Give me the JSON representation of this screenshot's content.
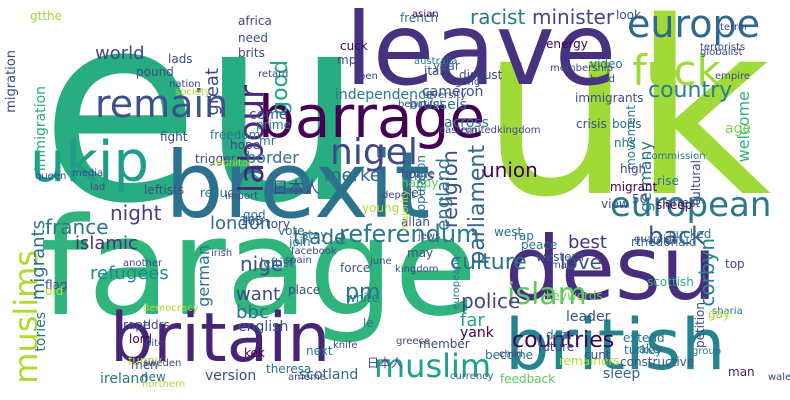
{
  "palette": {
    "purple": "#440154",
    "indigo": "#3b528b",
    "blue": "#31688e",
    "teal": "#21918c",
    "green": "#35b779",
    "lime": "#a0da39",
    "yellow": "#fde725"
  },
  "words": [
    {
      "id": "eu",
      "text": "eu",
      "color": "#27ad81"
    },
    {
      "id": "uk",
      "text": "uk",
      "color": "#a0da39"
    },
    {
      "id": "farage",
      "text": "farage",
      "color": "#2fb47c"
    },
    {
      "id": "leave",
      "text": "leave",
      "color": "#46327e"
    },
    {
      "id": "brexit",
      "text": "brexit",
      "color": "#2c728e"
    },
    {
      "id": "desu",
      "text": "desu",
      "color": "#472d7b"
    },
    {
      "id": "britain",
      "text": "britain",
      "color": "#482475"
    },
    {
      "id": "british",
      "text": "british",
      "color": "#25858e"
    },
    {
      "id": "barrage",
      "text": "barrage",
      "color": "#440154"
    },
    {
      "id": "ukip",
      "text": "ukip",
      "color": "#1f9e89"
    },
    {
      "id": "fuck",
      "text": "fuck",
      "color": "#a0da39"
    },
    {
      "id": "europe",
      "text": "europe",
      "color": "#31688e"
    },
    {
      "id": "european",
      "text": "european",
      "color": "#2a788e"
    },
    {
      "id": "remain",
      "text": "remain",
      "color": "#3b528b"
    },
    {
      "id": "nigel",
      "text": "nigel",
      "color": "#3e4989"
    },
    {
      "id": "labour",
      "text": "labour",
      "color": "#482878"
    },
    {
      "id": "muslims",
      "text": "muslims",
      "color": "#addc30"
    },
    {
      "id": "muslim",
      "text": "muslim",
      "color": "#1fa188"
    },
    {
      "id": "islam",
      "text": "islam",
      "color": "#5ec962"
    },
    {
      "id": "referendum",
      "text": "referendum",
      "color": "#2a788e"
    },
    {
      "id": "culture",
      "text": "culture",
      "color": "#2c728e"
    },
    {
      "id": "countries",
      "text": "countries",
      "color": "#440154"
    },
    {
      "id": "parliament",
      "text": "parliament",
      "color": "#31688e"
    },
    {
      "id": "religion",
      "text": "religion",
      "color": "#3b528b"
    },
    {
      "id": "country",
      "text": "country",
      "color": "#277f8e"
    },
    {
      "id": "minister",
      "text": "minister",
      "color": "#404688"
    },
    {
      "id": "racist",
      "text": "racist",
      "color": "#2a788e"
    },
    {
      "id": "good",
      "text": "good",
      "color": "#22a884"
    },
    {
      "id": "great",
      "text": "great",
      "color": "#3e4989"
    },
    {
      "id": "world",
      "text": "world",
      "color": "#3e4989"
    },
    {
      "id": "union",
      "text": "union",
      "color": "#440154"
    },
    {
      "id": "merkel",
      "text": "merkel",
      "color": "#31688e"
    },
    {
      "id": "border",
      "text": "border",
      "color": "#2c728e"
    },
    {
      "id": "france",
      "text": "france",
      "color": "#2a788e"
    },
    {
      "id": "night",
      "text": "night",
      "color": "#433e85"
    },
    {
      "id": "london",
      "text": "london",
      "color": "#2c728e"
    },
    {
      "id": "trade",
      "text": "trade",
      "color": "#31688e"
    },
    {
      "id": "islamic",
      "text": "islamic",
      "color": "#46327e"
    },
    {
      "id": "refugees",
      "text": "refugees",
      "color": "#23898e"
    },
    {
      "id": "nige",
      "text": "nige",
      "color": "#3b528b"
    },
    {
      "id": "want",
      "text": "want",
      "color": "#3e4989"
    },
    {
      "id": "bbc",
      "text": "bbc",
      "color": "#2c728e"
    },
    {
      "id": "pm",
      "text": "pm",
      "color": "#2c728e"
    },
    {
      "id": "police",
      "text": "police",
      "color": "#404688"
    },
    {
      "id": "far",
      "text": "far",
      "color": "#22a884"
    },
    {
      "id": "england",
      "text": "england",
      "color": "#2a788e"
    },
    {
      "id": "germany",
      "text": "germany",
      "color": "#2a788e"
    },
    {
      "id": "welcome",
      "text": "welcome",
      "color": "#2fb47c"
    },
    {
      "id": "back",
      "text": "back",
      "color": "#3b528b"
    },
    {
      "id": "best",
      "text": "best",
      "color": "#46327e"
    },
    {
      "id": "love",
      "text": "love",
      "color": "#3b528b"
    },
    {
      "id": "corbyn",
      "text": "corbyn",
      "color": "#25858e"
    },
    {
      "id": "migrants",
      "text": "migrants",
      "color": "#2c728e"
    },
    {
      "id": "german",
      "text": "german",
      "color": "#2c728e"
    },
    {
      "id": "tories",
      "text": "tories",
      "color": "#2c728e"
    },
    {
      "id": "immigration",
      "text": "immigration",
      "color": "#27ad81"
    },
    {
      "id": "migration",
      "text": "migration",
      "color": "#3e4989"
    },
    {
      "id": "scotland",
      "text": "scotland",
      "color": "#31688e"
    },
    {
      "id": "english",
      "text": "english",
      "color": "#3b528b"
    },
    {
      "id": "version",
      "text": "version",
      "color": "#3e4989"
    },
    {
      "id": "ireland",
      "text": "ireland",
      "color": "#2a788e"
    },
    {
      "id": "leftist",
      "text": "leftist",
      "color": "#2c728e"
    },
    {
      "id": "leader",
      "text": "leader",
      "color": "#3b528b"
    },
    {
      "id": "western",
      "text": "western",
      "color": "#3b528b"
    },
    {
      "id": "sleep",
      "text": "sleep",
      "color": "#31688e"
    },
    {
      "id": "yank",
      "text": "yank",
      "color": "#440154"
    },
    {
      "id": "keywords",
      "text": "keywords",
      "color": "#6ece58"
    },
    {
      "id": "remainers",
      "text": "remainers",
      "color": "#addc30"
    },
    {
      "id": "feedback",
      "text": "feedback",
      "color": "#5ec962"
    },
    {
      "id": "constructive",
      "text": "constructive",
      "color": "#38598c"
    },
    {
      "id": "man",
      "text": "man",
      "color": "#481f70"
    },
    {
      "id": "become",
      "text": "become",
      "color": "#2c728e"
    },
    {
      "id": "currency",
      "text": "currency",
      "color": "#31688e"
    },
    {
      "id": "scottish",
      "text": "scottish",
      "color": "#27ad81"
    },
    {
      "id": "member",
      "text": "member",
      "color": "#3e4989"
    },
    {
      "id": "nhs",
      "text": "nhs",
      "color": "#2c728e"
    },
    {
      "id": "boris",
      "text": "boris",
      "color": "#31688e"
    },
    {
      "id": "movement",
      "text": "movement",
      "color": "#2a788e"
    },
    {
      "id": "age",
      "text": "age",
      "color": "#7ad151"
    },
    {
      "id": "energy",
      "text": "energy",
      "color": "#440154"
    },
    {
      "id": "video",
      "text": "video",
      "color": "#2c728e"
    },
    {
      "id": "immigrants",
      "text": "immigrants",
      "color": "#3e4989"
    },
    {
      "id": "brussels",
      "text": "brussels",
      "color": "#2c728e"
    },
    {
      "id": "independence",
      "text": "independence",
      "color": "#2a788e"
    },
    {
      "id": "cameron",
      "text": "cameron",
      "color": "#3b528b"
    },
    {
      "id": "across",
      "text": "across",
      "color": "#2c728e"
    },
    {
      "id": "cuck",
      "text": "cuck",
      "color": "#440154"
    },
    {
      "id": "mp",
      "text": "mp",
      "color": "#3e4989"
    },
    {
      "id": "year",
      "text": "year",
      "color": "#2c728e"
    },
    {
      "id": "french",
      "text": "french",
      "color": "#2c728e"
    },
    {
      "id": "look",
      "text": "look",
      "color": "#3b528b"
    },
    {
      "id": "africa",
      "text": "africa",
      "color": "#404688"
    },
    {
      "id": "need",
      "text": "need",
      "color": "#3b528b"
    },
    {
      "id": "brits",
      "text": "brits",
      "color": "#404688"
    },
    {
      "id": "lads",
      "text": "lads",
      "color": "#3e4989"
    },
    {
      "id": "gtthe",
      "text": "gtthe",
      "color": "#a0da39"
    },
    {
      "id": "come",
      "text": "come",
      "color": "#3b528b"
    },
    {
      "id": "mps",
      "text": "mps",
      "color": "#2c728e"
    },
    {
      "id": "prime",
      "text": "prime",
      "color": "#2a788e"
    },
    {
      "id": "mr",
      "text": "mr",
      "color": "#31688e"
    },
    {
      "id": "hope",
      "text": "hope",
      "color": "#3e4989"
    },
    {
      "id": "fight",
      "text": "fight",
      "color": "#3e4989"
    },
    {
      "id": "freedom",
      "text": "freedom",
      "color": "#2a788e"
    },
    {
      "id": "trigger",
      "text": "trigger",
      "color": "#3e4989"
    },
    {
      "id": "reduce",
      "text": "reduce",
      "color": "#2a788e"
    },
    {
      "id": "leftists",
      "text": "leftists",
      "color": "#3e4989"
    },
    {
      "id": "young",
      "text": "young",
      "color": "#addc30"
    },
    {
      "id": "let",
      "text": "let",
      "color": "#31688e"
    },
    {
      "id": "home",
      "text": "home",
      "color": "#3e4989"
    },
    {
      "id": "happy",
      "text": "happy",
      "color": "#5ec962"
    },
    {
      "id": "may",
      "text": "may",
      "color": "#3b528b"
    },
    {
      "id": "god",
      "text": "god",
      "color": "#2c728e"
    },
    {
      "id": "tory",
      "text": "tory",
      "color": "#3e4989"
    },
    {
      "id": "vote",
      "text": "vote",
      "color": "#2c728e"
    },
    {
      "id": "join",
      "text": "join",
      "color": "#2a788e"
    },
    {
      "id": "stay",
      "text": "stay",
      "color": "#2c728e"
    },
    {
      "id": "allah",
      "text": "allah",
      "color": "#3e4989"
    },
    {
      "id": "view",
      "text": "view",
      "color": "#3b528b"
    },
    {
      "id": "rise",
      "text": "rise",
      "color": "#2c728e"
    },
    {
      "id": "arrest",
      "text": "arrest",
      "color": "#3b528b"
    },
    {
      "id": "crisis",
      "text": "crisis",
      "color": "#3e4989"
    },
    {
      "id": "commission",
      "text": "commission",
      "color": "#2a788e"
    },
    {
      "id": "cultural",
      "text": "cultural",
      "color": "#3e4989"
    },
    {
      "id": "population",
      "text": "population",
      "color": "#2a788e"
    },
    {
      "id": "high",
      "text": "high",
      "color": "#3e4989"
    },
    {
      "id": "migrant",
      "text": "migrant",
      "color": "#440154"
    },
    {
      "id": "deport",
      "text": "deport",
      "color": "#3e4989"
    },
    {
      "id": "peace",
      "text": "peace",
      "color": "#2c728e"
    },
    {
      "id": "place",
      "text": "place",
      "color": "#3e4989"
    },
    {
      "id": "force",
      "text": "force",
      "color": "#3b528b"
    },
    {
      "id": "white",
      "text": "white",
      "color": "#2a788e"
    },
    {
      "id": "flag",
      "text": "flag",
      "color": "#3e4989"
    },
    {
      "id": "old",
      "text": "old",
      "color": "#addc30"
    },
    {
      "id": "funny",
      "text": "funny",
      "color": "#addc30"
    },
    {
      "id": "men",
      "text": "men",
      "color": "#3e4989"
    },
    {
      "id": "new",
      "text": "new",
      "color": "#2c728e"
    },
    {
      "id": "lord",
      "text": "lord",
      "color": "#440154"
    },
    {
      "id": "tldrs",
      "text": "tldrs",
      "color": "#3e4989"
    },
    {
      "id": "rape",
      "text": "rape",
      "color": "#3e4989"
    },
    {
      "id": "kek",
      "text": "kek",
      "color": "#440154"
    },
    {
      "id": "next",
      "text": "next",
      "color": "#2a788e"
    },
    {
      "id": "future",
      "text": "future",
      "color": "#3e4989"
    },
    {
      "id": "extend",
      "text": "extend",
      "color": "#2c728e"
    },
    {
      "id": "turkey",
      "text": "turkey",
      "color": "#2c728e"
    },
    {
      "id": "petition",
      "text": "petition",
      "color": "#3e4989"
    },
    {
      "id": "australia",
      "text": "australia",
      "color": "#2a788e"
    },
    {
      "id": "italy",
      "text": "italy",
      "color": "#3e4989"
    },
    {
      "id": "disgust",
      "text": "disgust",
      "color": "#3e4989"
    },
    {
      "id": "asian",
      "text": "asian",
      "color": "#440154"
    },
    {
      "id": "terrorists",
      "text": "terrorists",
      "color": "#3e4989"
    },
    {
      "id": "globalist",
      "text": "globalist",
      "color": "#3e4989"
    },
    {
      "id": "sharia",
      "text": "sharia",
      "color": "#2a788e"
    },
    {
      "id": "rthedonald",
      "text": "rthedonald",
      "color": "#2c728e"
    },
    {
      "id": "cucked",
      "text": "cucked",
      "color": "#2a788e"
    },
    {
      "id": "sheep",
      "text": "sheep",
      "color": "#440154"
    },
    {
      "id": "le",
      "text": "le",
      "color": "#2a788e"
    },
    {
      "id": "west",
      "text": "west",
      "color": "#2c728e"
    },
    {
      "id": "rap",
      "text": "rap",
      "color": "#2c728e"
    },
    {
      "id": "deal",
      "text": "deal",
      "color": "#2c728e"
    },
    {
      "id": "cunt",
      "text": "cunt",
      "color": "#3e4989"
    },
    {
      "id": "take",
      "text": "take",
      "color": "#2c728e"
    },
    {
      "id": "group",
      "text": "group",
      "color": "#2a788e"
    },
    {
      "id": "gay",
      "text": "gay",
      "color": "#addc30"
    },
    {
      "id": "top",
      "text": "top",
      "color": "#3e4989"
    },
    {
      "id": "fifty",
      "text": "50",
      "color": "#3e4989"
    },
    {
      "id": "onesixtyfive",
      "text": "165",
      "color": "#3e4989"
    },
    {
      "id": "cjk1",
      "text": "日本人",
      "color": "#3e4989"
    },
    {
      "id": "cjk2",
      "text": "日本人",
      "color": "#3e4989"
    },
    {
      "id": "pound",
      "text": "pound",
      "color": "#3e4989"
    },
    {
      "id": "queen",
      "text": "queen",
      "color": "#3e4989"
    },
    {
      "id": "nation",
      "text": "nation",
      "color": "#3e4989"
    },
    {
      "id": "society",
      "text": "society",
      "color": "#addc30"
    },
    {
      "id": "retard",
      "text": "retard",
      "color": "#3e4989"
    },
    {
      "id": "monitor",
      "text": "monitor",
      "color": "#addc30"
    },
    {
      "id": "import",
      "text": "import",
      "color": "#3e4989"
    },
    {
      "id": "facebook",
      "text": "facebook",
      "color": "#3e4989"
    },
    {
      "id": "spain",
      "text": "spain",
      "color": "#3e4989"
    },
    {
      "id": "irish",
      "text": "irish",
      "color": "#3e4989"
    },
    {
      "id": "another",
      "text": "another",
      "color": "#3e4989"
    },
    {
      "id": "democracy",
      "text": "democracy",
      "color": "#addc30"
    },
    {
      "id": "sweden",
      "text": "sweden",
      "color": "#3e4989"
    },
    {
      "id": "theresa",
      "text": "theresa",
      "color": "#2c728e"
    },
    {
      "id": "northern",
      "text": "northern",
      "color": "#addc30"
    },
    {
      "id": "bite",
      "text": "bite",
      "color": "#3e4989"
    },
    {
      "id": "ameme",
      "text": "ameme",
      "color": "#3e4989"
    },
    {
      "id": "knife",
      "text": "knife",
      "color": "#3e4989"
    },
    {
      "id": "greece",
      "text": "greece",
      "color": "#3e4989"
    },
    {
      "id": "kingdom",
      "text": "kingdom",
      "color": "#3e4989"
    },
    {
      "id": "child",
      "text": "child",
      "color": "#3e4989"
    },
    {
      "id": "europeans",
      "text": "europeans",
      "color": "#2a788e"
    },
    {
      "id": "june",
      "text": "june",
      "color": "#3e4989"
    },
    {
      "id": "main",
      "text": "main",
      "color": "#3e4989"
    },
    {
      "id": "wales",
      "text": "wales",
      "color": "#3e4989"
    },
    {
      "id": "jews",
      "text": "jews",
      "color": "#3e4989"
    },
    {
      "id": "guardian",
      "text": "guardian",
      "color": "#3e4989"
    },
    {
      "id": "membership",
      "text": "membership",
      "color": "#3e4989"
    },
    {
      "id": "head",
      "text": "head",
      "color": "#3e4989"
    },
    {
      "id": "gang",
      "text": "gang",
      "color": "#3e4989"
    },
    {
      "id": "pen",
      "text": "pen",
      "color": "#3e4989"
    },
    {
      "id": "eastern",
      "text": "eastern",
      "color": "#3e4989"
    },
    {
      "id": "runitedkingdom",
      "text": "runitedkingdom",
      "color": "#3e4989"
    },
    {
      "id": "empire",
      "text": "empire",
      "color": "#3e4989"
    },
    {
      "id": "terror",
      "text": "terror",
      "color": "#3e4989"
    },
    {
      "id": "beautiful",
      "text": "beautiful",
      "color": "#3e4989"
    },
    {
      "id": "diversity",
      "text": "diversity",
      "color": "#3e4989"
    },
    {
      "id": "majority",
      "text": "majority",
      "color": "#addc30"
    },
    {
      "id": "lad",
      "text": "lad",
      "color": "#3e4989"
    },
    {
      "id": "media",
      "text": "media",
      "color": "#3e4989"
    }
  ]
}
